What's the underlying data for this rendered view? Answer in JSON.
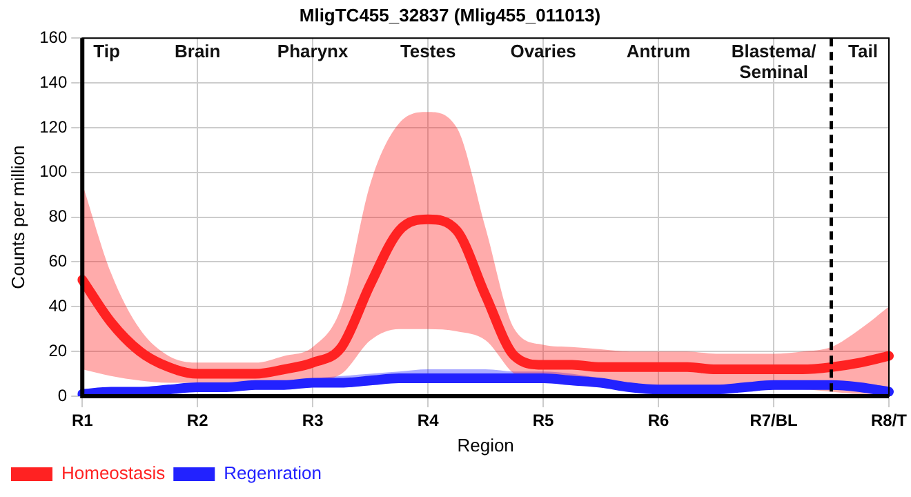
{
  "chart_data": {
    "type": "line",
    "title": "MligTC455_32837 (Mlig455_011013)",
    "xlabel": "Region",
    "ylabel": "Counts per million",
    "categories": [
      "R1",
      null,
      null,
      null,
      "R2",
      null,
      null,
      null,
      "R3",
      null,
      null,
      null,
      "R4",
      null,
      null,
      null,
      "R5",
      null,
      null,
      null,
      "R6",
      null,
      null,
      null,
      "R7/BL",
      null,
      null,
      null,
      "R8/T"
    ],
    "ylim": [
      0,
      160
    ],
    "yticks": [
      0,
      20,
      40,
      60,
      80,
      100,
      120,
      140,
      160
    ],
    "grid": true,
    "legend": "bottom left",
    "marker": "none",
    "line_style": "solid",
    "series": [
      {
        "name": "Homeostasis",
        "color": "#ff2222",
        "values": [
          52,
          33,
          20,
          13,
          10,
          10,
          10,
          12,
          15,
          22,
          50,
          74,
          79,
          74,
          45,
          18,
          14,
          14,
          13,
          13,
          13,
          13,
          12,
          12,
          12,
          12,
          13,
          15,
          18
        ],
        "upper": [
          95,
          55,
          30,
          18,
          15,
          15,
          15,
          18,
          22,
          40,
          95,
          122,
          127,
          120,
          75,
          30,
          23,
          22,
          21,
          20,
          20,
          20,
          19,
          19,
          19,
          20,
          22,
          30,
          40
        ],
        "lower": [
          12,
          9,
          7,
          6,
          6,
          6,
          6,
          6,
          7,
          10,
          25,
          30,
          30,
          29,
          25,
          10,
          7,
          6,
          5,
          4,
          3,
          3,
          3,
          3,
          3,
          3,
          2,
          1,
          1
        ]
      },
      {
        "name": "Regenration",
        "color": "#2222ff",
        "values": [
          1,
          2,
          2,
          3,
          4,
          4,
          5,
          5,
          6,
          6,
          7,
          8,
          8,
          8,
          8,
          8,
          8,
          7,
          6,
          4,
          3,
          3,
          3,
          4,
          5,
          5,
          5,
          4,
          2
        ],
        "upper": [
          2,
          3,
          4,
          5,
          6,
          6,
          7,
          7,
          8,
          9,
          10,
          11,
          12,
          12,
          12,
          11,
          11,
          10,
          8,
          6,
          5,
          5,
          5,
          6,
          7,
          7,
          7,
          6,
          4
        ],
        "lower": [
          0,
          1,
          1,
          2,
          2,
          2,
          3,
          3,
          4,
          4,
          5,
          6,
          6,
          6,
          6,
          6,
          6,
          5,
          4,
          3,
          2,
          2,
          2,
          3,
          4,
          4,
          4,
          3,
          1
        ]
      }
    ],
    "annotations": [
      "Tip",
      "Brain",
      "Pharynx",
      "Testes",
      "Ovaries",
      "Antrum",
      "Blastema/\nSeminal",
      "Tail"
    ]
  }
}
